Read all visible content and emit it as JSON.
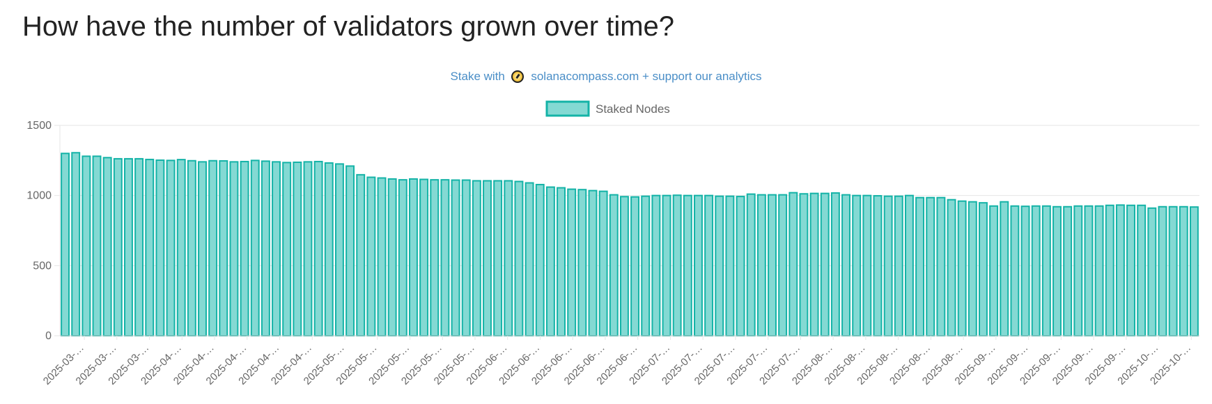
{
  "page": {
    "title": "How have the number of validators grown over time?"
  },
  "promo": {
    "prefix": "Stake with",
    "link_text": "solanacompass.com + support our analytics",
    "icon": "compass-coin-icon"
  },
  "colors": {
    "bar_fill": "#84d9d3",
    "bar_stroke": "#14b3a7",
    "grid": "#e6e6e6",
    "axis_text": "#666666",
    "promo_text": "#4a8ec7"
  },
  "chart_data": {
    "type": "bar",
    "title": "",
    "xlabel": "",
    "ylabel": "",
    "ylim": [
      0,
      1500
    ],
    "yticks": [
      0,
      500,
      1000,
      1500
    ],
    "grid": true,
    "legend_position": "top",
    "series": [
      {
        "name": "Staked Nodes",
        "values": [
          1300,
          1305,
          1280,
          1280,
          1270,
          1262,
          1262,
          1262,
          1257,
          1252,
          1250,
          1256,
          1248,
          1240,
          1248,
          1247,
          1240,
          1242,
          1250,
          1245,
          1240,
          1235,
          1237,
          1240,
          1242,
          1232,
          1225,
          1210,
          1148,
          1130,
          1125,
          1118,
          1112,
          1118,
          1115,
          1112,
          1112,
          1110,
          1110,
          1105,
          1105,
          1105,
          1105,
          1100,
          1090,
          1078,
          1060,
          1055,
          1045,
          1042,
          1035,
          1030,
          1005,
          992,
          990,
          995,
          1000,
          1000,
          1002,
          1000,
          1000,
          1000,
          995,
          995,
          993,
          1010,
          1005,
          1005,
          1005,
          1020,
          1012,
          1015,
          1015,
          1018,
          1005,
          1000,
          1000,
          998,
          995,
          995,
          1000,
          985,
          985,
          985,
          970,
          960,
          955,
          948,
          925,
          955,
          925,
          923,
          925,
          925,
          920,
          920,
          925,
          925,
          925,
          930,
          932,
          930,
          930,
          910,
          920,
          920,
          920,
          918
        ]
      }
    ],
    "x_tick_labels": [
      "2025-03-…",
      "2025-03-…",
      "2025-03-…",
      "2025-04-…",
      "2025-04-…",
      "2025-04-…",
      "2025-04-…",
      "2025-04-…",
      "2025-05-…",
      "2025-05-…",
      "2025-05-…",
      "2025-05-…",
      "2025-05-…",
      "2025-06-…",
      "2025-06-…",
      "2025-06-…",
      "2025-06-…",
      "2025-06-…",
      "2025-07-…",
      "2025-07-…",
      "2025-07-…",
      "2025-07-…",
      "2025-07-…",
      "2025-08-…",
      "2025-08-…",
      "2025-08-…",
      "2025-08-…",
      "2025-08-…",
      "2025-09-…",
      "2025-09-…",
      "2025-09-…",
      "2025-09-…",
      "2025-09-…",
      "2025-10-…",
      "2025-10-…"
    ]
  }
}
